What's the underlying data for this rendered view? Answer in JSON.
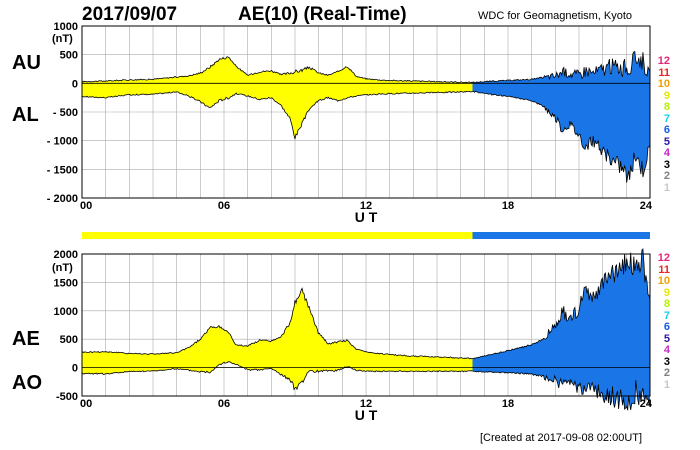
{
  "header": {
    "date": "2017/09/07",
    "index_title": "AE(10) (Real-Time)",
    "source": "WDC for Geomagnetism, Kyoto"
  },
  "footer": {
    "created": "[Created at 2017-09-08 02:00UT]"
  },
  "colors": {
    "provisional": "#ffff00",
    "realtime": "#1a75e6",
    "grid": "#aaaaaa",
    "outline": "#000000"
  },
  "legend": {
    "stations": [
      {
        "label": "12",
        "color": "#e6287a"
      },
      {
        "label": "11",
        "color": "#e62828"
      },
      {
        "label": "10",
        "color": "#f0a000"
      },
      {
        "label": "9",
        "color": "#e6e600"
      },
      {
        "label": "8",
        "color": "#b4f000"
      },
      {
        "label": "7",
        "color": "#14d2e6"
      },
      {
        "label": "6",
        "color": "#1a5ae6"
      },
      {
        "label": "5",
        "color": "#2a1aa0"
      },
      {
        "label": "4",
        "color": "#c828c8"
      },
      {
        "label": "3",
        "color": "#000000"
      },
      {
        "label": "2",
        "color": "#808080"
      },
      {
        "label": "1",
        "color": "#c8c8c8"
      }
    ]
  },
  "chart_data": [
    {
      "type": "area",
      "panel": "AU/AL",
      "labels": {
        "upper": "AU",
        "lower": "AL"
      },
      "unit": "(nT)",
      "xlabel": "U T",
      "xlim": [
        0,
        24
      ],
      "ylim": [
        -2000,
        1000
      ],
      "xticks": [
        "00",
        "06",
        "12",
        "18",
        "24"
      ],
      "xtick_values": [
        0,
        6,
        12,
        18,
        24
      ],
      "yticks": [
        "1000",
        "500",
        "0",
        "- 500",
        "- 1000",
        "- 1500",
        "- 2000"
      ],
      "ytick_values": [
        1000,
        500,
        0,
        -500,
        -1000,
        -1500,
        -2000
      ],
      "realtime_start_hour": 16.5,
      "grid": true,
      "series": [
        {
          "name": "AU",
          "x": [
            0,
            1,
            2,
            3,
            4,
            4.5,
            5,
            5.4,
            5.8,
            6.2,
            6.5,
            7,
            7.5,
            8,
            8.4,
            8.8,
            9,
            9.3,
            9.6,
            10,
            10.4,
            10.8,
            11.2,
            11.6,
            12,
            12.5,
            13,
            14,
            15,
            16,
            16.5,
            17,
            18,
            19,
            19.5,
            20,
            20.3,
            20.6,
            21,
            21.3,
            21.6,
            22,
            22.4,
            22.8,
            23.1,
            23.4,
            23.7,
            24
          ],
          "values": [
            30,
            40,
            60,
            70,
            110,
            130,
            180,
            280,
            420,
            460,
            300,
            140,
            200,
            220,
            150,
            180,
            200,
            230,
            280,
            180,
            140,
            200,
            300,
            120,
            80,
            60,
            50,
            40,
            30,
            20,
            15,
            30,
            50,
            70,
            100,
            130,
            200,
            170,
            150,
            230,
            180,
            250,
            300,
            280,
            250,
            450,
            400,
            100
          ]
        },
        {
          "name": "AL",
          "x": [
            0,
            1,
            2,
            3,
            4,
            4.5,
            5,
            5.4,
            5.8,
            6.2,
            6.5,
            7,
            7.5,
            8,
            8.4,
            8.8,
            9,
            9.3,
            9.6,
            10,
            10.4,
            10.8,
            11.2,
            11.6,
            12,
            12.5,
            13,
            14,
            15,
            16,
            16.5,
            17,
            18,
            19,
            19.5,
            20,
            20.3,
            20.6,
            21,
            21.3,
            21.6,
            22,
            22.4,
            22.8,
            23.1,
            23.4,
            23.7,
            24
          ],
          "values": [
            -230,
            -250,
            -200,
            -190,
            -150,
            -220,
            -320,
            -430,
            -300,
            -250,
            -180,
            -220,
            -280,
            -250,
            -380,
            -620,
            -950,
            -700,
            -450,
            -300,
            -250,
            -300,
            -250,
            -220,
            -200,
            -190,
            -180,
            -170,
            -160,
            -150,
            -140,
            -180,
            -230,
            -300,
            -400,
            -600,
            -800,
            -700,
            -900,
            -1100,
            -1000,
            -1200,
            -1350,
            -1450,
            -1650,
            -1250,
            -1500,
            -1100
          ]
        }
      ]
    },
    {
      "type": "area",
      "panel": "AE/AO",
      "labels": {
        "upper": "AE",
        "lower": "AO"
      },
      "unit": "(nT)",
      "xlabel": "U T",
      "xlim": [
        0,
        24
      ],
      "ylim": [
        -500,
        2000
      ],
      "xticks": [
        "00",
        "06",
        "12",
        "18",
        "24"
      ],
      "xtick_values": [
        0,
        6,
        12,
        18,
        24
      ],
      "yticks": [
        "2000",
        "1500",
        "1000",
        "500",
        "0",
        "-500"
      ],
      "ytick_values": [
        2000,
        1500,
        1000,
        500,
        0,
        -500
      ],
      "realtime_start_hour": 16.5,
      "grid": true,
      "series": [
        {
          "name": "AE",
          "x": [
            0,
            1,
            2,
            3,
            4,
            4.5,
            5,
            5.4,
            5.8,
            6.2,
            6.5,
            7,
            7.5,
            8,
            8.4,
            8.8,
            9,
            9.3,
            9.6,
            10,
            10.4,
            10.8,
            11.2,
            11.6,
            12,
            12.5,
            13,
            14,
            15,
            16,
            16.5,
            17,
            18,
            19,
            19.5,
            20,
            20.3,
            20.6,
            21,
            21.3,
            21.6,
            22,
            22.4,
            22.8,
            23.1,
            23.4,
            23.7,
            24
          ],
          "values": [
            270,
            280,
            250,
            240,
            260,
            350,
            500,
            700,
            720,
            620,
            400,
            380,
            480,
            470,
            530,
            800,
            1150,
            1350,
            1050,
            600,
            420,
            450,
            480,
            320,
            280,
            250,
            230,
            200,
            190,
            170,
            160,
            200,
            300,
            400,
            500,
            750,
            1000,
            850,
            1050,
            1350,
            1200,
            1450,
            1650,
            1750,
            1950,
            1700,
            1900,
            1200
          ]
        },
        {
          "name": "AO",
          "x": [
            0,
            1,
            2,
            3,
            4,
            4.5,
            5,
            5.4,
            5.8,
            6.2,
            6.5,
            7,
            7.5,
            8,
            8.4,
            8.8,
            9,
            9.3,
            9.6,
            10,
            10.4,
            10.8,
            11.2,
            11.6,
            12,
            12.5,
            13,
            14,
            15,
            16,
            16.5,
            17,
            18,
            19,
            19.5,
            20,
            20.3,
            20.6,
            21,
            21.3,
            21.6,
            22,
            22.4,
            22.8,
            23.1,
            23.4,
            23.7,
            24
          ],
          "values": [
            -100,
            -110,
            -70,
            -60,
            -20,
            -45,
            -70,
            -75,
            60,
            100,
            60,
            -40,
            -40,
            -15,
            -115,
            -220,
            -375,
            -235,
            -85,
            -60,
            -55,
            -50,
            25,
            -50,
            -60,
            -65,
            -65,
            -65,
            -65,
            -65,
            -63,
            -75,
            -90,
            -115,
            -150,
            -235,
            -300,
            -265,
            -375,
            -435,
            -410,
            -475,
            -525,
            -585,
            -700,
            -400,
            -550,
            -500
          ]
        }
      ]
    }
  ]
}
